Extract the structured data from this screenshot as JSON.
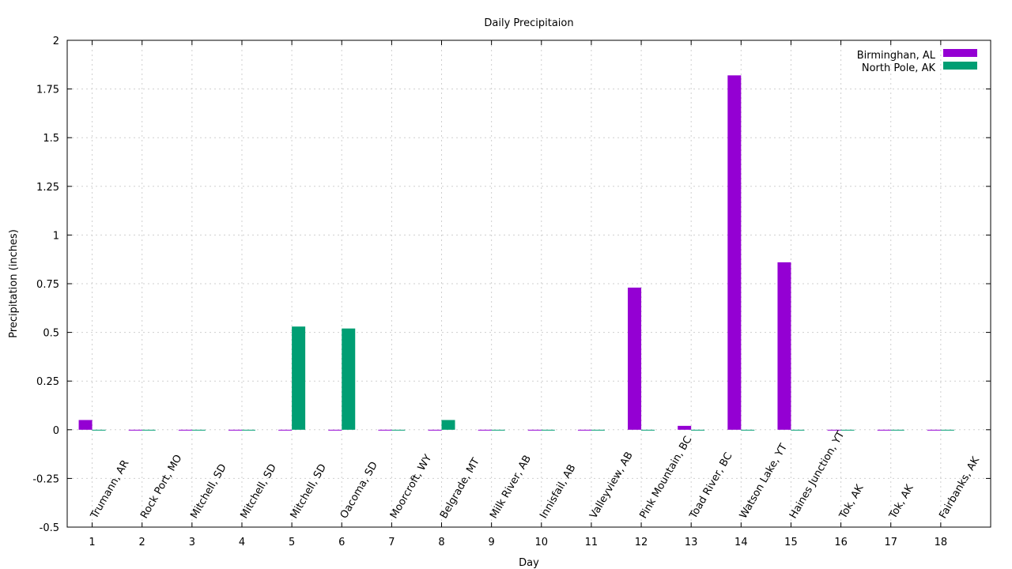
{
  "chart_data": {
    "type": "bar",
    "title": "Daily Precipitaion",
    "xlabel": "Day",
    "ylabel": "Precipitation (inches)",
    "ylim": [
      -0.5,
      2
    ],
    "yticks": [
      -0.5,
      -0.25,
      0,
      0.25,
      0.5,
      0.75,
      1,
      1.25,
      1.5,
      1.75,
      2
    ],
    "ytick_labels": [
      "-0.5",
      "-0.25",
      "0",
      "0.25",
      "0.5",
      "0.75",
      "1",
      "1.25",
      "1.5",
      "1.75",
      "2"
    ],
    "categories": [
      "1",
      "2",
      "3",
      "4",
      "5",
      "6",
      "7",
      "8",
      "9",
      "10",
      "11",
      "12",
      "13",
      "14",
      "15",
      "16",
      "17",
      "18"
    ],
    "location_labels": [
      "Trumann, AR",
      "Rock Port, MO",
      "Mitchell, SD",
      "Mitchell, SD",
      "Mitchell, SD",
      "Oacoma, SD",
      "Moorcroft, WY",
      "Belgrade, MT",
      "Milk River, AB",
      "Innisfail, AB",
      "Valleyview, AB",
      "Pink Mountain, BC",
      "Toad River, BC",
      "Watson Lake, YT",
      "Haines Junction, YT",
      "Tok, AK",
      "Tok, AK",
      "Fairbanks, AK"
    ],
    "grid": true,
    "legend_position": "top-right",
    "series": [
      {
        "name": "Birminghan, AL",
        "color": "#9400d3",
        "values": [
          0.05,
          0,
          0,
          0,
          0,
          0,
          0,
          0,
          0,
          0,
          0,
          0.73,
          0.02,
          1.82,
          0.86,
          0,
          0,
          0
        ]
      },
      {
        "name": "North Pole, AK",
        "color": "#009e73",
        "values": [
          0,
          0,
          0,
          0,
          0.53,
          0.52,
          0,
          0.05,
          0,
          0,
          0,
          0,
          0,
          0,
          0,
          0,
          0,
          0
        ]
      }
    ]
  }
}
